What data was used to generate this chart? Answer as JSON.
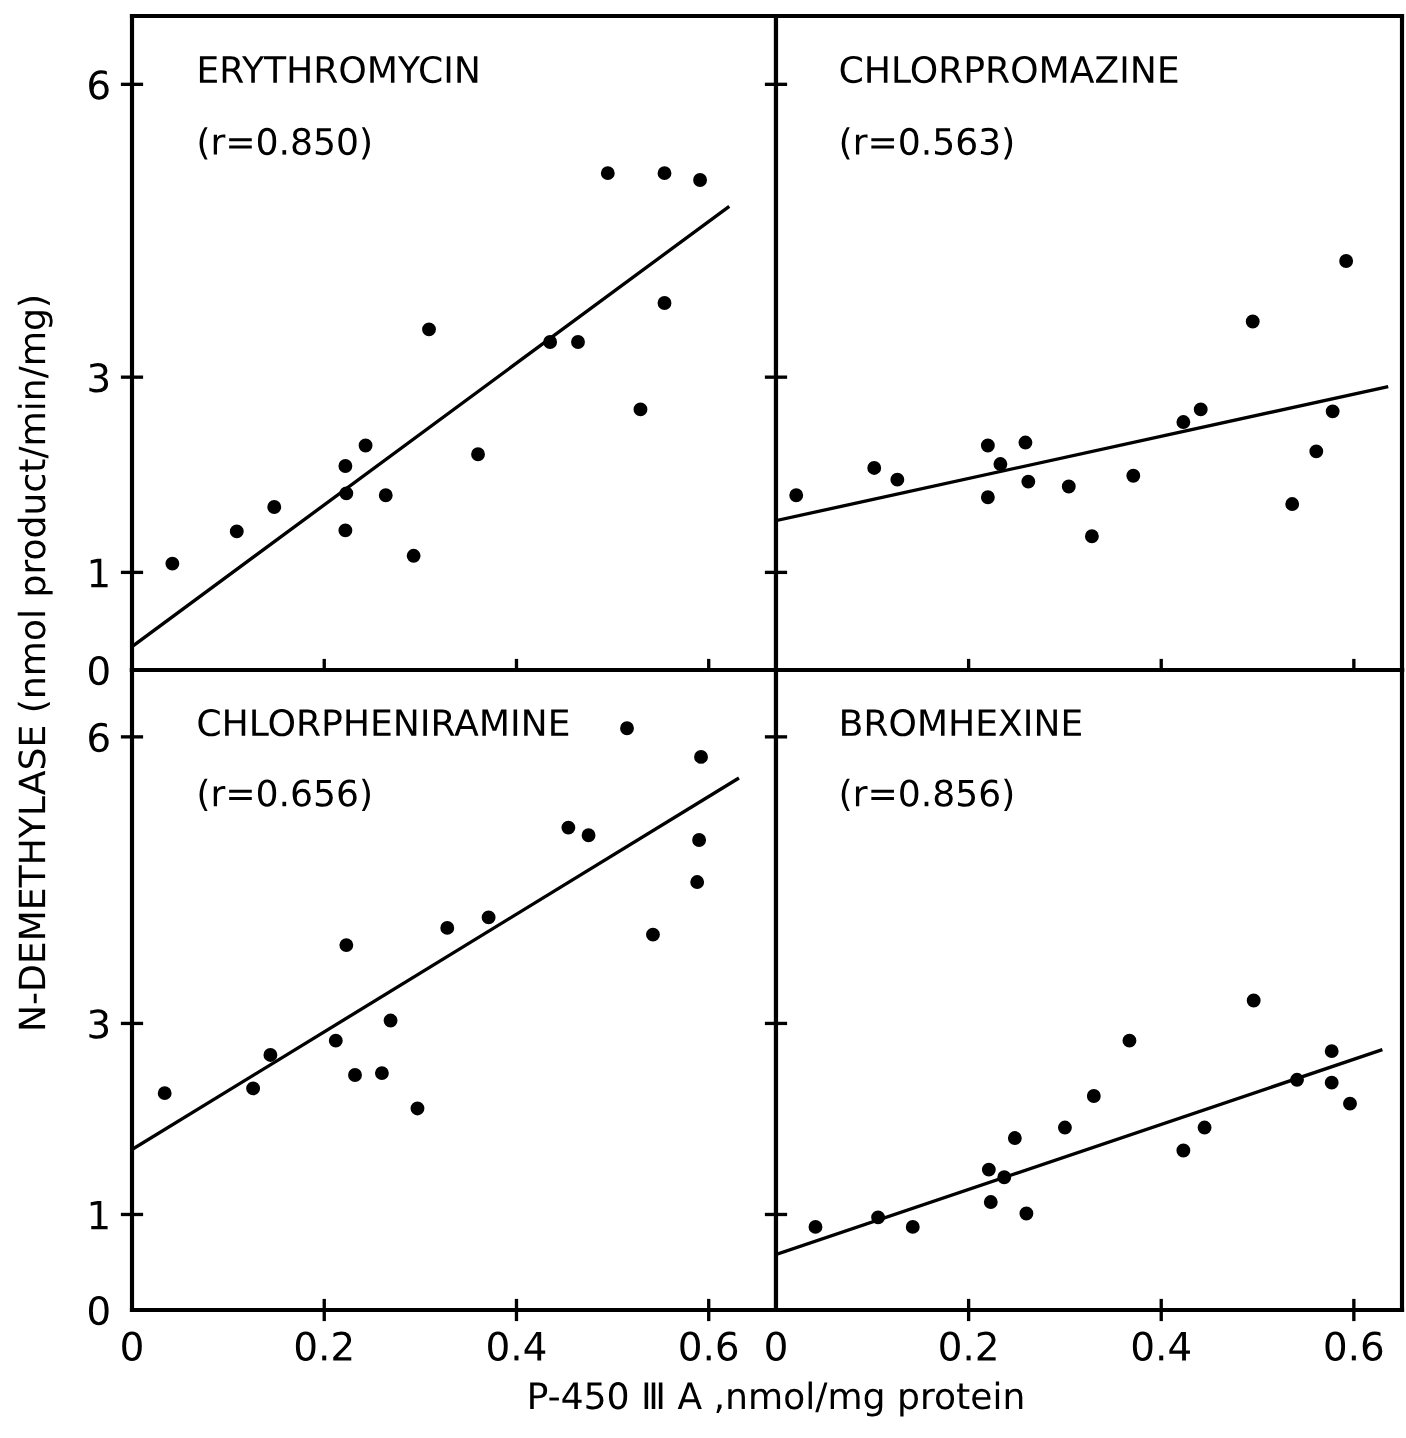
{
  "chart_data": [
    {
      "type": "scatter",
      "ylabel": "N-DEMETHYLASE (nmol product/min/mg)",
      "annotations": [
        "ERYTHROMYCIN",
        "(r=0.850)"
      ],
      "xlim": [
        0,
        0.67
      ],
      "ylim": [
        0,
        6.7
      ],
      "xticks": [
        0,
        0.2,
        0.4,
        0.6
      ],
      "yticks": [
        0,
        1,
        3,
        6
      ],
      "tick_labels": "y",
      "grid": false,
      "legend": false,
      "series": [
        {
          "marker": "circle",
          "color": "#000000",
          "x": [
            0.042,
            0.109,
            0.148,
            0.222,
            0.223,
            0.222,
            0.243,
            0.264,
            0.293,
            0.309,
            0.36,
            0.435,
            0.464,
            0.495,
            0.529,
            0.554,
            0.554,
            0.591
          ],
          "values": [
            1.09,
            1.42,
            1.67,
            2.09,
            1.81,
            1.43,
            2.3,
            1.79,
            1.17,
            3.49,
            2.21,
            3.36,
            3.36,
            5.09,
            2.67,
            5.09,
            3.76,
            5.02
          ]
        },
        {
          "type": "line",
          "color": "#000000",
          "x": [
            0,
            0.62
          ],
          "values": [
            0.24,
            4.74
          ]
        }
      ]
    },
    {
      "type": "scatter",
      "annotations": [
        "CHLORPROMAZINE",
        "(r=0.563)"
      ],
      "xlim": [
        0,
        0.65
      ],
      "ylim": [
        0,
        6.7
      ],
      "xticks": [
        0,
        0.2,
        0.4,
        0.6
      ],
      "yticks": [
        0,
        1,
        3,
        6
      ],
      "tick_labels": false,
      "grid": false,
      "legend": false,
      "series": [
        {
          "marker": "circle",
          "color": "#000000",
          "x": [
            0.021,
            0.102,
            0.126,
            0.22,
            0.22,
            0.233,
            0.259,
            0.262,
            0.304,
            0.328,
            0.371,
            0.423,
            0.441,
            0.495,
            0.536,
            0.561,
            0.578,
            0.592
          ],
          "values": [
            1.79,
            2.07,
            1.95,
            2.3,
            1.77,
            2.11,
            2.33,
            1.93,
            1.88,
            1.37,
            1.99,
            2.54,
            2.67,
            3.57,
            1.7,
            2.24,
            2.65,
            4.19
          ]
        },
        {
          "type": "line",
          "color": "#000000",
          "x": [
            0,
            0.634
          ],
          "values": [
            1.53,
            2.9
          ]
        }
      ]
    },
    {
      "type": "scatter",
      "xlabel": "P-450 Ⅲ A ,nmol/mg protein",
      "annotations": [
        "CHLORPHENIRAMINE",
        "(r=0.656)"
      ],
      "xlim": [
        0,
        0.67
      ],
      "ylim": [
        0,
        6.7
      ],
      "xticks": [
        0,
        0.2,
        0.4,
        0.6
      ],
      "yticks": [
        0,
        1,
        3,
        6
      ],
      "grid": false,
      "legend": false,
      "series": [
        {
          "marker": "circle",
          "color": "#000000",
          "x": [
            0.034,
            0.126,
            0.144,
            0.212,
            0.223,
            0.232,
            0.26,
            0.269,
            0.297,
            0.328,
            0.371,
            0.454,
            0.475,
            0.515,
            0.542,
            0.588,
            0.59,
            0.592
          ],
          "values": [
            2.27,
            2.32,
            2.67,
            2.82,
            3.82,
            2.46,
            2.48,
            3.03,
            2.11,
            4.0,
            4.11,
            5.05,
            4.97,
            6.09,
            3.93,
            4.48,
            4.92,
            5.79
          ]
        },
        {
          "type": "line",
          "color": "#000000",
          "x": [
            0,
            0.63
          ],
          "values": [
            1.68,
            5.56
          ]
        }
      ]
    },
    {
      "type": "scatter",
      "annotations": [
        "BROMHEXINE",
        "(r=0.856)"
      ],
      "xlim": [
        0,
        0.65
      ],
      "ylim": [
        0,
        6.7
      ],
      "xticks": [
        0,
        0.2,
        0.4,
        0.6
      ],
      "yticks": [
        0,
        1,
        3,
        6
      ],
      "tick_labels": "x",
      "grid": false,
      "legend": false,
      "series": [
        {
          "marker": "circle",
          "color": "#000000",
          "x": [
            0.041,
            0.106,
            0.142,
            0.221,
            0.223,
            0.237,
            0.248,
            0.26,
            0.3,
            0.33,
            0.367,
            0.423,
            0.445,
            0.496,
            0.541,
            0.577,
            0.577,
            0.596
          ],
          "values": [
            0.87,
            0.97,
            0.87,
            1.47,
            1.13,
            1.39,
            1.8,
            1.01,
            1.91,
            2.24,
            2.82,
            1.67,
            1.91,
            3.24,
            2.41,
            2.71,
            2.38,
            2.16
          ]
        },
        {
          "type": "line",
          "color": "#000000",
          "x": [
            0,
            0.628
          ],
          "values": [
            0.58,
            2.72
          ]
        }
      ]
    }
  ]
}
